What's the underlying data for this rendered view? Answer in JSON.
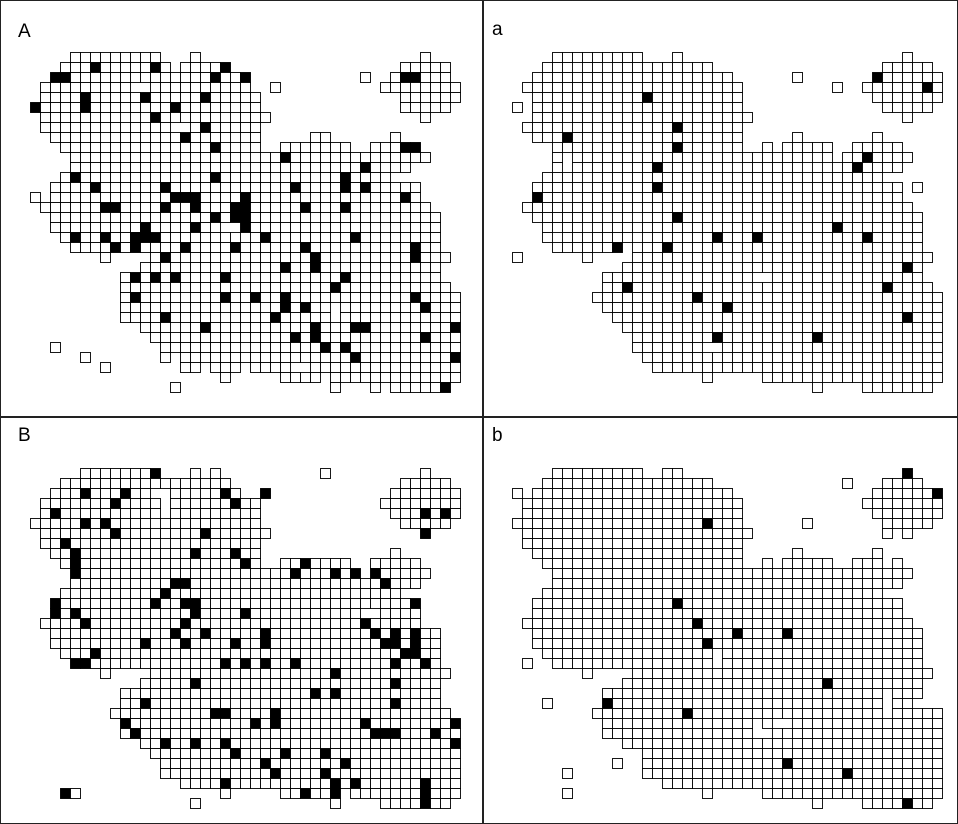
{
  "figure": {
    "panels": [
      {
        "id": "A",
        "label": "A",
        "seed": 11,
        "density": 0.1
      },
      {
        "id": "a",
        "label": "a",
        "seed": 23,
        "density": 0.025
      },
      {
        "id": "B",
        "label": "B",
        "seed": 37,
        "density": 0.1
      },
      {
        "id": "b",
        "label": "b",
        "seed": 51,
        "density": 0.015
      }
    ],
    "colors": {
      "cell_border": "#000000",
      "cell_filled": "#000000",
      "background": "#ffffff",
      "frame": "#222222"
    }
  }
}
